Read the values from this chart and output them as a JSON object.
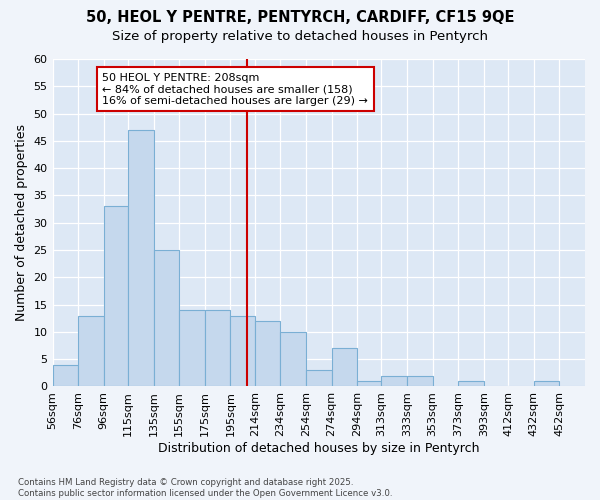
{
  "title1": "50, HEOL Y PENTRE, PENTYRCH, CARDIFF, CF15 9QE",
  "title2": "Size of property relative to detached houses in Pentyrch",
  "xlabel": "Distribution of detached houses by size in Pentyrch",
  "ylabel": "Number of detached properties",
  "bin_labels": [
    "56sqm",
    "76sqm",
    "96sqm",
    "115sqm",
    "135sqm",
    "155sqm",
    "175sqm",
    "195sqm",
    "214sqm",
    "234sqm",
    "254sqm",
    "274sqm",
    "294sqm",
    "313sqm",
    "333sqm",
    "353sqm",
    "373sqm",
    "393sqm",
    "412sqm",
    "432sqm",
    "452sqm"
  ],
  "bin_edges": [
    56,
    76,
    96,
    115,
    135,
    155,
    175,
    195,
    214,
    234,
    254,
    274,
    294,
    313,
    333,
    353,
    373,
    393,
    412,
    432,
    452,
    472
  ],
  "bar_heights": [
    4,
    13,
    33,
    47,
    25,
    14,
    14,
    13,
    12,
    10,
    3,
    7,
    1,
    2,
    2,
    0,
    1,
    0,
    0,
    1,
    0
  ],
  "bar_color": "#c5d8ed",
  "bar_edge_color": "#7aafd4",
  "vline_x": 208,
  "vline_color": "#cc0000",
  "annotation_text": "50 HEOL Y PENTRE: 208sqm\n← 84% of detached houses are smaller (158)\n16% of semi-detached houses are larger (29) →",
  "annotation_box_color": "#ffffff",
  "annotation_box_edge": "#cc0000",
  "ylim": [
    0,
    60
  ],
  "yticks": [
    0,
    5,
    10,
    15,
    20,
    25,
    30,
    35,
    40,
    45,
    50,
    55,
    60
  ],
  "background_color": "#dde8f5",
  "fig_background": "#f0f4fa",
  "footer_text": "Contains HM Land Registry data © Crown copyright and database right 2025.\nContains public sector information licensed under the Open Government Licence v3.0.",
  "title_fontsize": 10.5,
  "subtitle_fontsize": 9.5,
  "axis_label_fontsize": 9,
  "tick_fontsize": 8,
  "annotation_fontsize": 8
}
